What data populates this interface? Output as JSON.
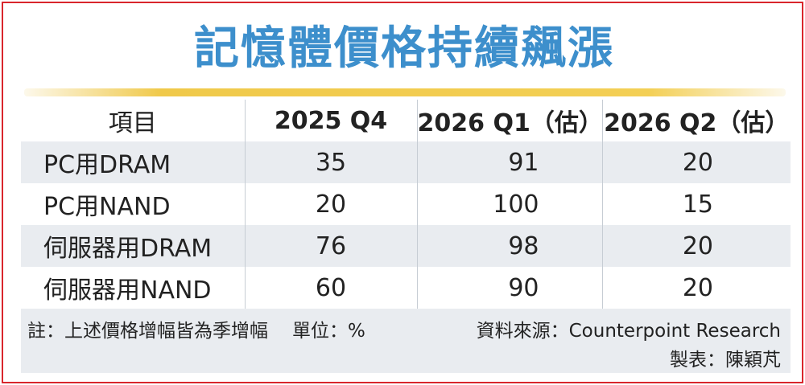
{
  "title": "記憶體價格持續飆漲",
  "table": {
    "headers": [
      "項目",
      "2025 Q4",
      "2026 Q1（估）",
      "2026 Q2（估）"
    ],
    "rows": [
      {
        "label": "PC用DRAM",
        "values": [
          "35",
          "91",
          "20"
        ]
      },
      {
        "label": "PC用NAND",
        "values": [
          "20",
          "100",
          "15"
        ]
      },
      {
        "label": "伺服器用DRAM",
        "values": [
          "76",
          "98",
          "20"
        ]
      },
      {
        "label": "伺服器用NAND",
        "values": [
          "60",
          "90",
          "20"
        ]
      }
    ]
  },
  "footer": {
    "note": "註：上述價格增幅皆為季增幅",
    "unit": "單位：%",
    "source": "資料來源：Counterpoint Research",
    "maker": "製表：陳穎芃"
  },
  "colors": {
    "title": "#3d8fcc",
    "border": "#d9262c",
    "rule": "#f3cf55",
    "stripe": "#e9ecf0"
  }
}
